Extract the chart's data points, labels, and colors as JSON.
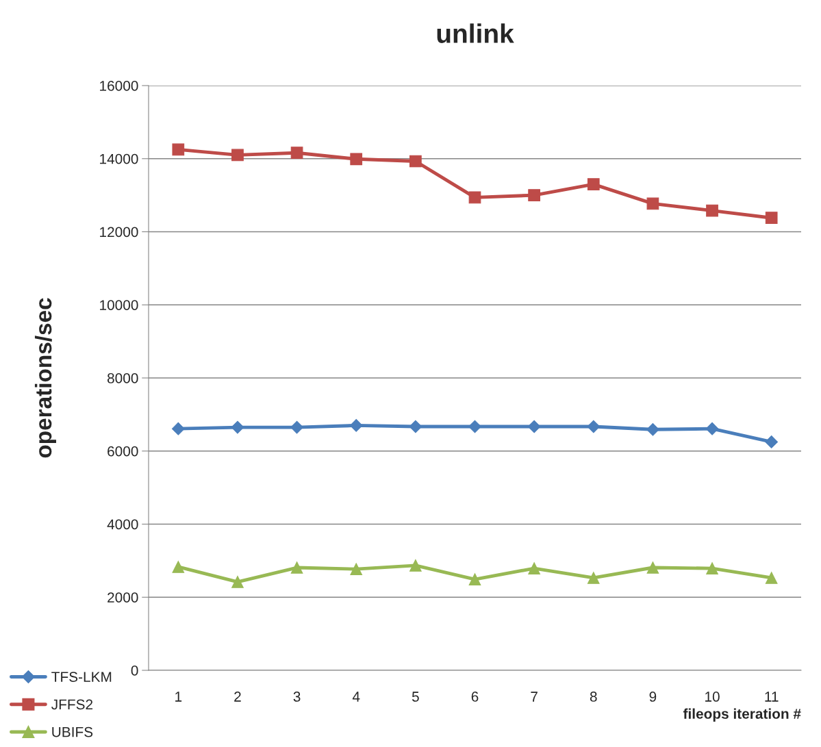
{
  "chart_data": {
    "type": "line",
    "title": "unlink",
    "xlabel": "fileops iteration #",
    "ylabel": "operations/sec",
    "categories": [
      "1",
      "2",
      "3",
      "4",
      "5",
      "6",
      "7",
      "8",
      "9",
      "10",
      "11"
    ],
    "series": [
      {
        "name": "TFS-LKM",
        "color": "#4a7ebb",
        "marker": "diamond",
        "values": [
          6610,
          6650,
          6650,
          6700,
          6670,
          6670,
          6670,
          6670,
          6590,
          6610,
          6250
        ]
      },
      {
        "name": "JFFS2",
        "color": "#be4b48",
        "marker": "square",
        "values": [
          14250,
          14100,
          14160,
          13990,
          13930,
          12940,
          13000,
          13300,
          12770,
          12580,
          12380
        ]
      },
      {
        "name": "UBIFS",
        "color": "#98b954",
        "marker": "triangle",
        "values": [
          2830,
          2420,
          2810,
          2770,
          2870,
          2490,
          2790,
          2530,
          2810,
          2790,
          2530
        ]
      }
    ],
    "ylim": [
      0,
      16000
    ],
    "yticks": [
      0,
      2000,
      4000,
      6000,
      8000,
      10000,
      12000,
      14000,
      16000
    ],
    "grid": "y",
    "legend": "bottom left"
  }
}
